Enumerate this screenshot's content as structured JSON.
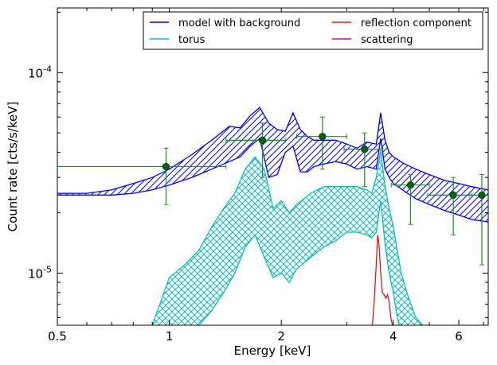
{
  "chart_data": {
    "type": "line",
    "title": "",
    "xlabel": "Energy [keV]",
    "ylabel": "Count rate [cts/s/keV]",
    "xscale": "log",
    "yscale": "log",
    "xlim": [
      0.5,
      7.2
    ],
    "ylim": [
      5.5e-06,
      0.00021
    ],
    "xticks": [
      {
        "value": 0.5,
        "label": "0.5"
      },
      {
        "value": 1,
        "label": "1"
      },
      {
        "value": 2,
        "label": "2"
      },
      {
        "value": 4,
        "label": "4"
      },
      {
        "value": 6,
        "label": "6"
      }
    ],
    "yticks": [
      {
        "value": 1e-05,
        "base": "10",
        "exp": "-5"
      },
      {
        "value": 0.0001,
        "base": "10",
        "exp": "-4"
      }
    ],
    "grid": false,
    "legend_position": "top-right",
    "legend": [
      {
        "label": "model with background",
        "color": "#0000ee"
      },
      {
        "label": "reflection component",
        "color": "#ee1111"
      },
      {
        "label": "torus",
        "color": "#11bbbb"
      },
      {
        "label": "scattering",
        "color": "#bb11bb"
      }
    ],
    "series": [
      {
        "name": "model with background",
        "color": "#0000ee",
        "kind": "band",
        "x": [
          0.5,
          0.6,
          0.7,
          0.8,
          0.9,
          1.0,
          1.15,
          1.3,
          1.45,
          1.55,
          1.65,
          1.75,
          1.85,
          1.95,
          2.05,
          2.15,
          2.25,
          2.35,
          2.45,
          2.6,
          2.8,
          3.0,
          3.2,
          3.4,
          3.6,
          3.7,
          3.8,
          3.9,
          4.0,
          4.3,
          4.6,
          5.0,
          5.5,
          6.0,
          6.5,
          7.2
        ],
        "upper": [
          2.5e-05,
          2.5e-05,
          2.6e-05,
          2.8e-05,
          3e-05,
          3.3e-05,
          3.9e-05,
          4.6e-05,
          5.4e-05,
          5.3e-05,
          6.1e-05,
          6.7e-05,
          5.6e-05,
          5.2e-05,
          5.1e-05,
          6.3e-05,
          5.2e-05,
          4.8e-05,
          4.6e-05,
          4.6e-05,
          4.6e-05,
          4.4e-05,
          4.2e-05,
          4.5e-05,
          4.4e-05,
          6.3e-05,
          4.6e-05,
          4e-05,
          3.8e-05,
          3.5e-05,
          3.3e-05,
          3.1e-05,
          2.9e-05,
          2.8e-05,
          2.7e-05,
          2.6e-05
        ],
        "lower": [
          2.45e-05,
          2.45e-05,
          2.45e-05,
          2.5e-05,
          2.6e-05,
          2.75e-05,
          3e-05,
          3.3e-05,
          3.6e-05,
          3.8e-05,
          4.3e-05,
          4.7e-05,
          3e-05,
          3.1e-05,
          4e-05,
          4.3e-05,
          3.2e-05,
          3.2e-05,
          3.4e-05,
          3.5e-05,
          3.6e-05,
          3.5e-05,
          3.3e-05,
          3.4e-05,
          3.3e-05,
          4.7e-05,
          3.3e-05,
          3e-05,
          2.8e-05,
          2.55e-05,
          2.35e-05,
          2.2e-05,
          2.05e-05,
          1.95e-05,
          1.85e-05,
          1.8e-05
        ]
      },
      {
        "name": "torus",
        "color": "#11bbbb",
        "kind": "band",
        "x": [
          0.9,
          1.0,
          1.1,
          1.2,
          1.3,
          1.4,
          1.5,
          1.6,
          1.7,
          1.8,
          1.9,
          2.0,
          2.1,
          2.2,
          2.4,
          2.6,
          2.8,
          3.0,
          3.2,
          3.4,
          3.5,
          3.6,
          3.7,
          3.8,
          3.9,
          4.0,
          4.1,
          4.2,
          4.4,
          4.6,
          4.8
        ],
        "upper": [
          5.5e-06,
          9.5e-06,
          1.1e-05,
          1.3e-05,
          1.7e-05,
          2.1e-05,
          2.5e-05,
          3.3e-05,
          3.8e-05,
          3.3e-05,
          2.1e-05,
          2.3e-05,
          2e-05,
          2.2e-05,
          2.5e-05,
          2.7e-05,
          2.7e-05,
          2.7e-05,
          2.7e-05,
          2.6e-05,
          2.5e-05,
          3e-05,
          4.1e-05,
          2.7e-05,
          2.1e-05,
          1.7e-05,
          1.3e-05,
          1e-05,
          7.5e-06,
          6e-06,
          5.5e-06
        ],
        "lower": [
          4e-06,
          4e-06,
          5e-06,
          5.5e-06,
          6.5e-06,
          8e-06,
          1e-05,
          1.35e-05,
          1.55e-05,
          1.2e-05,
          9.5e-06,
          1e-05,
          9e-06,
          1.05e-05,
          1.2e-05,
          1.35e-05,
          1.45e-05,
          1.6e-05,
          1.6e-05,
          1.55e-05,
          1.5e-05,
          1.6e-05,
          2.3e-05,
          1.4e-05,
          1e-05,
          8e-06,
          6e-06,
          5e-06,
          4e-06,
          4e-06,
          4e-06
        ]
      },
      {
        "name": "reflection component",
        "color": "#ee1111",
        "kind": "line",
        "x": [
          3.5,
          3.55,
          3.6,
          3.63,
          3.66,
          3.7,
          3.74,
          3.78,
          3.82,
          3.86,
          3.9,
          3.94,
          3.98,
          4.05
        ],
        "y": [
          5e-06,
          7e-06,
          1.1e-05,
          1.55e-05,
          1.4e-05,
          1e-05,
          8e-06,
          7.8e-06,
          7.5e-06,
          7.8e-06,
          7.2e-06,
          6e-06,
          5.5e-06,
          5e-06
        ]
      },
      {
        "name": "scattering",
        "color": "#bb11bb",
        "kind": "line",
        "x": [],
        "y": []
      },
      {
        "name": "data",
        "color": "#006400",
        "ecolor": "#228b22",
        "kind": "errorbar",
        "points": [
          {
            "x": 0.98,
            "xlo": 0.5,
            "xhi": 1.42,
            "y": 3.4e-05,
            "ylo": 2.2e-05,
            "yhi": 4.2e-05
          },
          {
            "x": 1.78,
            "xlo": 1.42,
            "xhi": 2.05,
            "y": 4.6e-05,
            "ylo": 3e-05,
            "yhi": 5.6e-05
          },
          {
            "x": 2.58,
            "xlo": 2.2,
            "xhi": 3.0,
            "y": 4.8e-05,
            "ylo": 3.3e-05,
            "yhi": 6e-05
          },
          {
            "x": 3.35,
            "xlo": 2.95,
            "xhi": 3.75,
            "y": 4.15e-05,
            "ylo": 2.7e-05,
            "yhi": 5e-05
          },
          {
            "x": 4.45,
            "xlo": 3.95,
            "xhi": 5.0,
            "y": 2.75e-05,
            "ylo": 1.75e-05,
            "yhi": 3.1e-05
          },
          {
            "x": 5.8,
            "xlo": 4.95,
            "xhi": 6.5,
            "y": 2.45e-05,
            "ylo": 1.55e-05,
            "yhi": 3e-05
          },
          {
            "x": 6.92,
            "xlo": 6.4,
            "xhi": 7.2,
            "y": 2.45e-05,
            "ylo": 1.1e-05,
            "yhi": 3.1e-05
          }
        ]
      }
    ]
  }
}
